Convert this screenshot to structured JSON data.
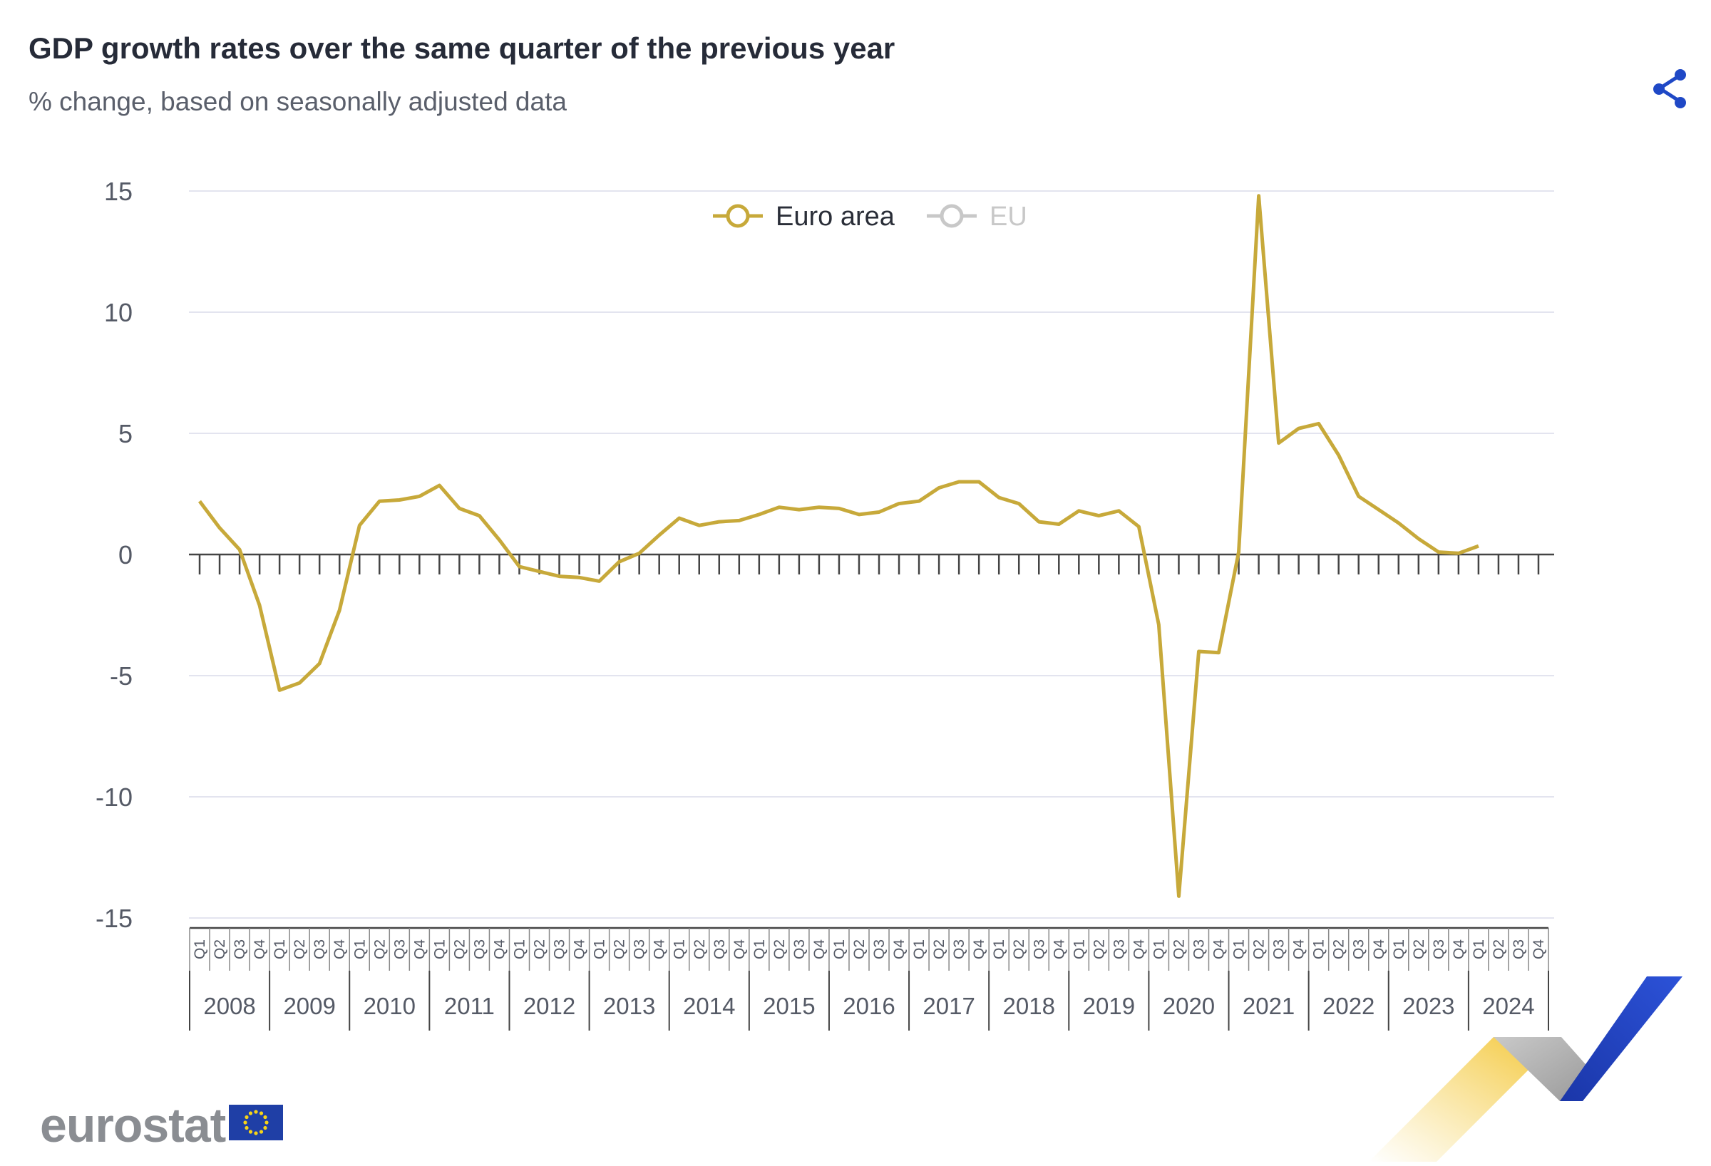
{
  "header": {
    "title": "GDP growth rates over the same quarter of the previous year",
    "subtitle": "% change, based on seasonally adjusted data"
  },
  "share": {
    "icon": "share-icon"
  },
  "logo": {
    "text": "eurostat",
    "flag": "eu-flag"
  },
  "colors": {
    "euro_area": "#c7a93a",
    "eu_inactive": "#c8c8c8",
    "grid": "#e3e4ef",
    "axis": "#444444",
    "text": "#555a66"
  },
  "chart_data": {
    "type": "line",
    "ylim": [
      -15,
      15
    ],
    "yticks": [
      15,
      10,
      5,
      0,
      -5,
      -10,
      -15
    ],
    "quarters": [
      "Q1",
      "Q2",
      "Q3",
      "Q4"
    ],
    "years": [
      "2008",
      "2009",
      "2010",
      "2011",
      "2012",
      "2013",
      "2014",
      "2015",
      "2016",
      "2017",
      "2018",
      "2019",
      "2020",
      "2021",
      "2022",
      "2023",
      "2024"
    ],
    "legend": [
      {
        "name": "Euro area",
        "active": true
      },
      {
        "name": "EU",
        "active": false
      }
    ],
    "series": [
      {
        "name": "Euro area",
        "values": [
          2.2,
          1.1,
          0.2,
          -2.1,
          -5.6,
          -5.3,
          -4.5,
          -2.3,
          1.2,
          2.2,
          2.25,
          2.4,
          2.85,
          1.9,
          1.6,
          0.6,
          -0.5,
          -0.7,
          -0.9,
          -0.95,
          -1.1,
          -0.3,
          0.05,
          0.8,
          1.5,
          1.2,
          1.35,
          1.4,
          1.65,
          1.95,
          1.85,
          1.95,
          1.9,
          1.65,
          1.75,
          2.1,
          2.2,
          2.75,
          3.0,
          3.0,
          2.35,
          2.1,
          1.35,
          1.25,
          1.8,
          1.6,
          1.8,
          1.15,
          -2.9,
          -14.1,
          -4.0,
          -4.05,
          0.1,
          14.8,
          4.6,
          5.2,
          5.4,
          4.1,
          2.4,
          1.85,
          1.3,
          0.65,
          0.1,
          0.05,
          0.35
        ]
      }
    ]
  }
}
